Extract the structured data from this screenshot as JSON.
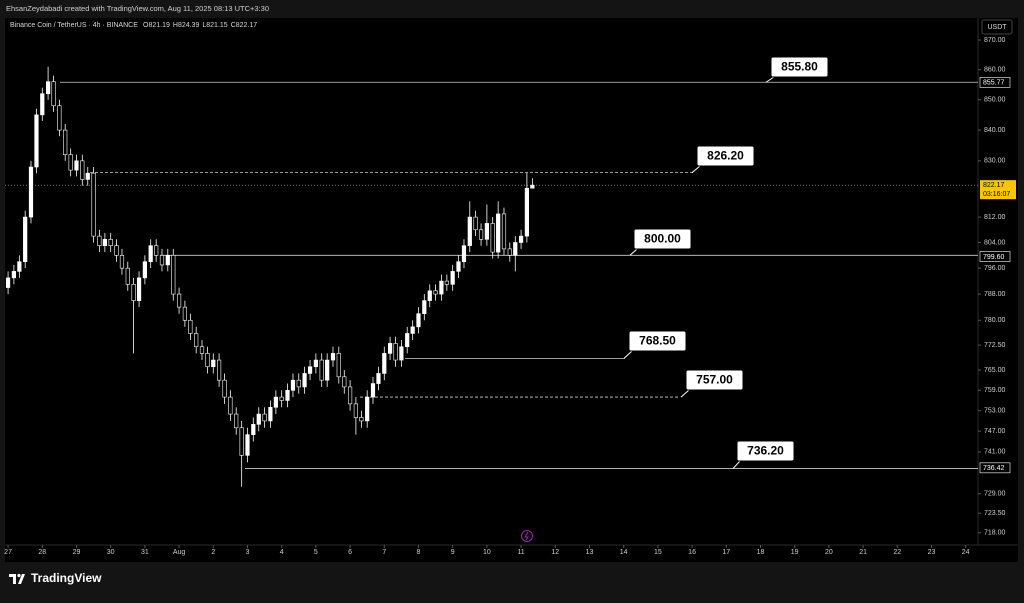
{
  "header": {
    "credit": "EhsanZeydabadi created with TradingView.com, Aug 11, 2025 08:13 UTC+3:30"
  },
  "footer": {
    "brand": "TradingView"
  },
  "chart_data": {
    "type": "candlestick",
    "title": "Binance Coin / TetherUS · 4h · BINANCE",
    "ohlc_legend_letters": [
      "O",
      "H",
      "L",
      "C"
    ],
    "currency": "USDT",
    "log_scale": true,
    "grid": false,
    "up_color": "#ffffff",
    "down_color": "#000000",
    "wick_color": "#ffffff",
    "xlim": [
      -0.09,
      28.36
    ],
    "xticks": [
      {
        "value": 0,
        "label": "27"
      },
      {
        "value": 1,
        "label": "28"
      },
      {
        "value": 2,
        "label": "29"
      },
      {
        "value": 3,
        "label": "30"
      },
      {
        "value": 4,
        "label": "31"
      },
      {
        "value": 5,
        "label": "Aug"
      },
      {
        "value": 6,
        "label": "2"
      },
      {
        "value": 7,
        "label": "3"
      },
      {
        "value": 8,
        "label": "4"
      },
      {
        "value": 9,
        "label": "5"
      },
      {
        "value": 10,
        "label": "6"
      },
      {
        "value": 11,
        "label": "7"
      },
      {
        "value": 12,
        "label": "8"
      },
      {
        "value": 13,
        "label": "9"
      },
      {
        "value": 14,
        "label": "10"
      },
      {
        "value": 15,
        "label": "11"
      },
      {
        "value": 16,
        "label": "12"
      },
      {
        "value": 17,
        "label": "13"
      },
      {
        "value": 18,
        "label": "14"
      },
      {
        "value": 19,
        "label": "15"
      },
      {
        "value": 20,
        "label": "16"
      },
      {
        "value": 21,
        "label": "17"
      },
      {
        "value": 22,
        "label": "18"
      },
      {
        "value": 23,
        "label": "19"
      },
      {
        "value": 24,
        "label": "20"
      },
      {
        "value": 25,
        "label": "21"
      },
      {
        "value": 26,
        "label": "22"
      },
      {
        "value": 27,
        "label": "23"
      },
      {
        "value": 28,
        "label": "24"
      }
    ],
    "ylim": [
      714.6,
      877.5
    ],
    "yticks": [
      {
        "value": 870,
        "label": "870.00"
      },
      {
        "value": 860,
        "label": "860.00"
      },
      {
        "value": 850,
        "label": "850.00"
      },
      {
        "value": 840,
        "label": "840.00"
      },
      {
        "value": 830,
        "label": "830.00"
      },
      {
        "value": 812,
        "label": "812.00"
      },
      {
        "value": 804,
        "label": "804.00"
      },
      {
        "value": 796,
        "label": "796.00"
      },
      {
        "value": 788,
        "label": "788.00"
      },
      {
        "value": 780,
        "label": "780.00"
      },
      {
        "value": 772.5,
        "label": "772.50"
      },
      {
        "value": 765,
        "label": "765.00"
      },
      {
        "value": 759,
        "label": "759.00"
      },
      {
        "value": 753,
        "label": "753.00"
      },
      {
        "value": 747,
        "label": "747.00"
      },
      {
        "value": 741,
        "label": "741.00"
      },
      {
        "value": 729,
        "label": "729.00"
      },
      {
        "value": 723.5,
        "label": "723.50"
      },
      {
        "value": 718,
        "label": "718.00"
      }
    ],
    "price_labels": [
      855.77,
      {
        "value": 799.6,
        "label": "799.60"
      },
      736.42
    ],
    "countdown": "03:16:07",
    "annotations": [
      {
        "value": 855.8,
        "label": "855.80",
        "style": "solid"
      },
      {
        "value": 826.2,
        "label": "826.20",
        "style": "dashed"
      },
      {
        "value": 800,
        "label": "800.00",
        "style": "solid"
      },
      {
        "value": 768.5,
        "label": "768.50",
        "style": "solid"
      },
      {
        "value": 757,
        "label": "757.00",
        "style": "dashed"
      },
      {
        "value": 736.2,
        "label": "736.20",
        "style": "solid"
      }
    ],
    "candles": [
      [
        0,
        790,
        795,
        788,
        793
      ],
      [
        0.17,
        793,
        797,
        791,
        795
      ],
      [
        0.33,
        795,
        800,
        793,
        798
      ],
      [
        0.5,
        798,
        814,
        796,
        812
      ],
      [
        0.67,
        812,
        830,
        810,
        828
      ],
      [
        0.83,
        828,
        847,
        826,
        845
      ],
      [
        1,
        845,
        854,
        843,
        852
      ],
      [
        1.17,
        852,
        861,
        850,
        856
      ],
      [
        1.33,
        856,
        858,
        846,
        848
      ],
      [
        1.5,
        848,
        850,
        838,
        840
      ],
      [
        1.67,
        840,
        842,
        830,
        832
      ],
      [
        1.83,
        832,
        834,
        825,
        827
      ],
      [
        2,
        827,
        832,
        825,
        830
      ],
      [
        2.17,
        830,
        832,
        822,
        824
      ],
      [
        2.33,
        824,
        828,
        822,
        826
      ],
      [
        2.5,
        826,
        828,
        804,
        806
      ],
      [
        2.67,
        806,
        808,
        801,
        803
      ],
      [
        2.83,
        803,
        807,
        801,
        805
      ],
      [
        3,
        805,
        807,
        801,
        803
      ],
      [
        3.17,
        803,
        805,
        798,
        800
      ],
      [
        3.33,
        800,
        802,
        794,
        796
      ],
      [
        3.5,
        796,
        798,
        789,
        791
      ],
      [
        3.67,
        791,
        793,
        770,
        786
      ],
      [
        3.83,
        786,
        795,
        784,
        793
      ],
      [
        4,
        793,
        800,
        791,
        798
      ],
      [
        4.17,
        798,
        805,
        796,
        803
      ],
      [
        4.33,
        803,
        805,
        798,
        800
      ],
      [
        4.5,
        800,
        802,
        795,
        797
      ],
      [
        4.67,
        797,
        802,
        795,
        800
      ],
      [
        4.83,
        800,
        802,
        786,
        788
      ],
      [
        5,
        788,
        790,
        782,
        784
      ],
      [
        5.17,
        784,
        786,
        778,
        780
      ],
      [
        5.33,
        780,
        782,
        774,
        776
      ],
      [
        5.5,
        776,
        778,
        770,
        772
      ],
      [
        5.67,
        772,
        774,
        768,
        770
      ],
      [
        5.83,
        770,
        772,
        764,
        766
      ],
      [
        6,
        766,
        770,
        764,
        768
      ],
      [
        6.17,
        768,
        770,
        760,
        762
      ],
      [
        6.33,
        762,
        764,
        755,
        757
      ],
      [
        6.5,
        757,
        759,
        750,
        752
      ],
      [
        6.67,
        752,
        754,
        746,
        748
      ],
      [
        6.83,
        748,
        750,
        731,
        740
      ],
      [
        7,
        740,
        748,
        738,
        746
      ],
      [
        7.17,
        746,
        751,
        744,
        749
      ],
      [
        7.33,
        749,
        754,
        747,
        752
      ],
      [
        7.5,
        752,
        754,
        748,
        750
      ],
      [
        7.67,
        750,
        756,
        748,
        754
      ],
      [
        7.83,
        754,
        759,
        752,
        757
      ],
      [
        8,
        757,
        759,
        754,
        756
      ],
      [
        8.17,
        756,
        761,
        754,
        759
      ],
      [
        8.33,
        759,
        764,
        757,
        762
      ],
      [
        8.5,
        762,
        764,
        758,
        760
      ],
      [
        8.67,
        760,
        766,
        758,
        764
      ],
      [
        8.83,
        764,
        768,
        762,
        766
      ],
      [
        9,
        766,
        770,
        764,
        768
      ],
      [
        9.17,
        768,
        770,
        760,
        762
      ],
      [
        9.33,
        762,
        770,
        760,
        768
      ],
      [
        9.5,
        768,
        772,
        766,
        770
      ],
      [
        9.67,
        770,
        772,
        761,
        763
      ],
      [
        9.83,
        763,
        765,
        758,
        760
      ],
      [
        10,
        760,
        762,
        753,
        755
      ],
      [
        10.17,
        755,
        757,
        746,
        751
      ],
      [
        10.33,
        751,
        753,
        748,
        750
      ],
      [
        10.5,
        750,
        759,
        748,
        757
      ],
      [
        10.67,
        757,
        763,
        755,
        761
      ],
      [
        10.83,
        761,
        766,
        759,
        764
      ],
      [
        11,
        764,
        772,
        762,
        770
      ],
      [
        11.17,
        770,
        775,
        768,
        773
      ],
      [
        11.33,
        773,
        775,
        766,
        768
      ],
      [
        11.5,
        768,
        774,
        766,
        772
      ],
      [
        11.67,
        772,
        778,
        770,
        776
      ],
      [
        11.83,
        776,
        780,
        774,
        778
      ],
      [
        12,
        778,
        784,
        776,
        782
      ],
      [
        12.17,
        782,
        788,
        780,
        786
      ],
      [
        12.33,
        786,
        791,
        784,
        789
      ],
      [
        12.5,
        789,
        791,
        786,
        788
      ],
      [
        12.67,
        788,
        794,
        786,
        792
      ],
      [
        12.83,
        792,
        794,
        789,
        791
      ],
      [
        13,
        791,
        797,
        789,
        795
      ],
      [
        13.17,
        795,
        800,
        793,
        798
      ],
      [
        13.33,
        798,
        805,
        796,
        803
      ],
      [
        13.5,
        803,
        817,
        801,
        812
      ],
      [
        13.67,
        812,
        814,
        806,
        808
      ],
      [
        13.83,
        808,
        810,
        803,
        805
      ],
      [
        14,
        805,
        816,
        803,
        810
      ],
      [
        14.17,
        810,
        812,
        799,
        801
      ],
      [
        14.33,
        801,
        817,
        799,
        813
      ],
      [
        14.5,
        813,
        815,
        800,
        802
      ],
      [
        14.67,
        802,
        804,
        798,
        800
      ],
      [
        14.83,
        800,
        806,
        795,
        804
      ],
      [
        15,
        804,
        808,
        802,
        806
      ],
      [
        15.17,
        806,
        826.2,
        804,
        821.19
      ],
      [
        15.33,
        821.19,
        824.39,
        821.15,
        822.17
      ]
    ]
  }
}
